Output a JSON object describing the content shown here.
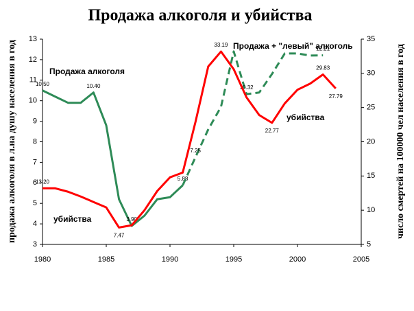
{
  "chart_data": {
    "type": "line",
    "title": "Продажа алкоголя и убийства",
    "y_label": "продажа алкоголя в л.на душу населения в год",
    "y2_label": "число смертей на 100000 чел населения в год",
    "xlim": [
      1980,
      2005
    ],
    "xticks": [
      1980,
      1985,
      1990,
      1995,
      2000,
      2005
    ],
    "ylim": [
      3,
      13
    ],
    "yticks": [
      3,
      4,
      5,
      6,
      7,
      8,
      9,
      10,
      11,
      12,
      13
    ],
    "y2lim": [
      5,
      35
    ],
    "y2ticks": [
      5,
      10,
      15,
      20,
      25,
      30,
      35
    ],
    "annotations": [
      "убийства"
    ],
    "series": [
      {
        "name": "Продажа алкоголя",
        "color": "#2e8b57",
        "style": "solid",
        "x": [
          1980,
          1981,
          1982,
          1983,
          1984,
          1985,
          1986,
          1987,
          1988,
          1989,
          1990,
          1991
        ],
        "values": [
          10.5,
          10.2,
          9.9,
          9.9,
          10.4,
          8.8,
          5.2,
          3.9,
          4.4,
          5.2,
          5.3,
          5.88
        ],
        "value_labels": [
          "10.50",
          null,
          null,
          null,
          "10.40",
          null,
          null,
          "3.90",
          null,
          null,
          null,
          "5.88"
        ]
      },
      {
        "name": "Продажа + \"левый\" алкоголь",
        "color": "#2e8b57",
        "style": "dashed",
        "x": [
          1991,
          1992,
          1993,
          1994,
          1995,
          1996,
          1997,
          1998,
          1999,
          2000,
          2001,
          2002
        ],
        "values": [
          5.88,
          7.25,
          8.6,
          9.7,
          12.4,
          10.32,
          10.4,
          11.3,
          12.3,
          12.3,
          12.2,
          12.21
        ],
        "value_labels": [
          null,
          "7.25",
          null,
          null,
          null,
          "10.32",
          null,
          null,
          null,
          null,
          null,
          "12.21"
        ]
      },
      {
        "name": "убийства",
        "color": "#ff0000",
        "style": "solid",
        "axis": "y2",
        "x": [
          1980,
          1981,
          1982,
          1983,
          1984,
          1985,
          1986,
          1987,
          1988,
          1989,
          1990,
          1991,
          1992,
          1993,
          1994,
          1995,
          1996,
          1997,
          1998,
          1999,
          2000,
          2001,
          2002,
          2003
        ],
        "values": [
          13.2,
          13.2,
          12.7,
          12.0,
          11.2,
          10.4,
          7.47,
          7.8,
          10.0,
          12.8,
          14.8,
          15.5,
          22.9,
          31.0,
          33.19,
          30.6,
          26.5,
          23.9,
          22.77,
          25.6,
          27.6,
          28.5,
          29.83,
          27.79
        ],
        "value_labels": [
          "13.20",
          null,
          null,
          null,
          null,
          null,
          "7.47",
          null,
          null,
          null,
          null,
          null,
          null,
          null,
          "33.19",
          null,
          null,
          null,
          "22.77",
          null,
          null,
          null,
          "29.83",
          "27.79"
        ]
      }
    ]
  }
}
